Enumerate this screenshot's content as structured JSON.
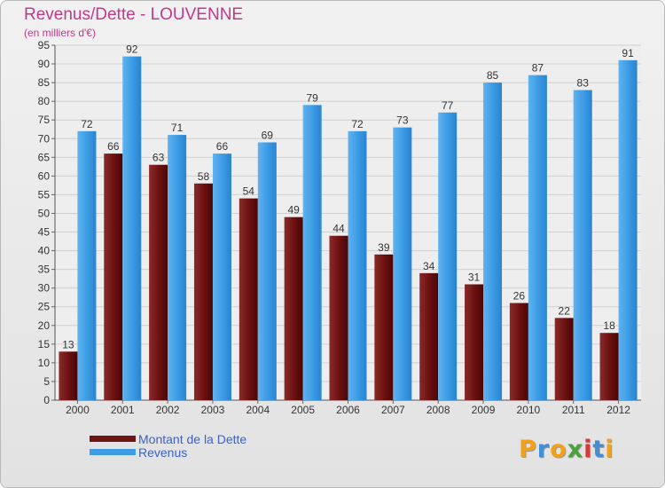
{
  "title": "Revenus/Dette - LOUVENNE",
  "subtitle": "(en milliers d'€)",
  "logo_text": "Proxiti",
  "colors": {
    "debt": "#6e1414",
    "revenue": "#3d9ee6",
    "title": "#c0398a",
    "legend_text": "#3a63c8"
  },
  "chart_data": {
    "type": "bar",
    "title": "Revenus/Dette - LOUVENNE",
    "ylabel": "(en milliers d'€)",
    "ylim": [
      0,
      95
    ],
    "yticks": [
      0,
      5,
      10,
      15,
      20,
      25,
      30,
      35,
      40,
      45,
      50,
      55,
      60,
      65,
      70,
      75,
      80,
      85,
      90,
      95
    ],
    "grid": true,
    "legend_position": "bottom-left",
    "categories": [
      "2000",
      "2001",
      "2002",
      "2003",
      "2004",
      "2005",
      "2006",
      "2007",
      "2008",
      "2009",
      "2010",
      "2011",
      "2012"
    ],
    "series": [
      {
        "name": "Montant de la Dette",
        "values": [
          13,
          66,
          63,
          58,
          54,
          49,
          44,
          39,
          34,
          31,
          26,
          22,
          18
        ]
      },
      {
        "name": "Revenus",
        "values": [
          72,
          92,
          71,
          66,
          69,
          79,
          72,
          73,
          77,
          85,
          87,
          83,
          91
        ]
      }
    ]
  }
}
